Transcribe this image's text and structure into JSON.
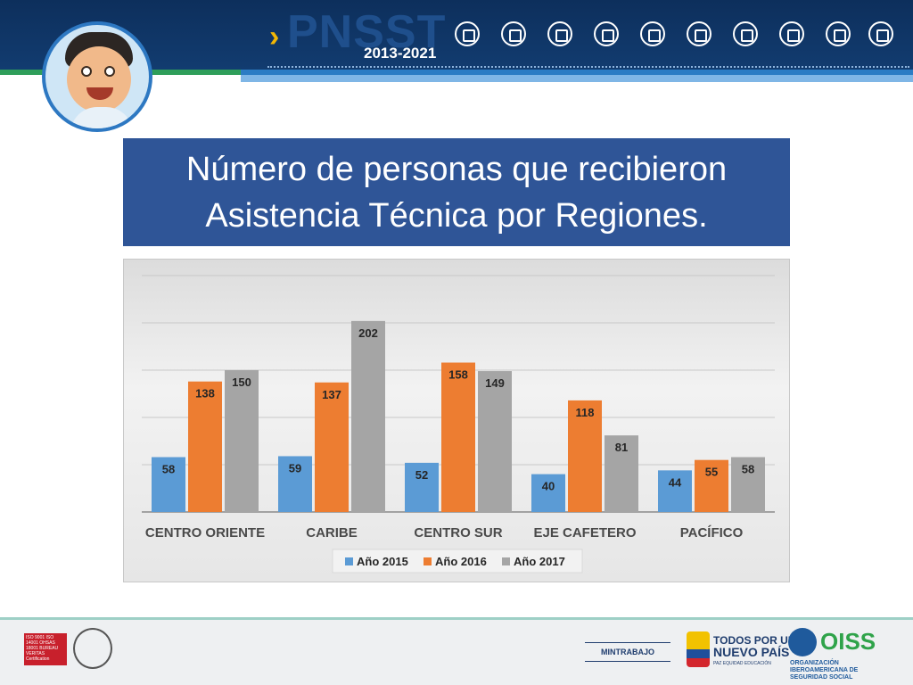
{
  "header": {
    "brand": "PNSST",
    "years": "2013-2021",
    "sector_icons": [
      "factory-icon",
      "construction-icon",
      "truck-icon",
      "building-icon",
      "worker-icon",
      "mining-icon",
      "farmer-icon",
      "nurse-icon",
      "operator-icon",
      "doctor-icon"
    ]
  },
  "slide": {
    "title_line1": "Número de personas que recibieron",
    "title_line2": "Asistencia Técnica por Regiones."
  },
  "chart_data": {
    "type": "bar",
    "categories": [
      "CENTRO ORIENTE",
      "CARIBE",
      "CENTRO SUR",
      "EJE CAFETERO",
      "PACÍFICO"
    ],
    "series": [
      {
        "name": "Año 2015",
        "color": "#5b9bd5",
        "values": [
          58,
          59,
          52,
          40,
          44
        ]
      },
      {
        "name": "Año 2016",
        "color": "#ed7d31",
        "values": [
          138,
          137,
          158,
          118,
          55
        ]
      },
      {
        "name": "Año 2017",
        "color": "#a5a5a5",
        "values": [
          150,
          202,
          149,
          81,
          58
        ]
      }
    ],
    "ylim": [
      0,
      250
    ],
    "grid": true,
    "legend": "bottom",
    "data_labels": true
  },
  "footer": {
    "cert_text": "ISO 9001 ISO 14001 OHSAS 18001 BUREAU VERITAS Certification",
    "mintrabajo": "MINTRABAJO",
    "tpnp_line1": "TODOS POR UN",
    "tpnp_line2": "NUEVO PAÍS",
    "tpnp_line3": "PAZ  EQUIDAD  EDUCACIÓN",
    "oiss": "OISS",
    "oiss_sub": "ORGANIZACIÓN IBEROAMERICANA DE SEGURIDAD SOCIAL"
  }
}
